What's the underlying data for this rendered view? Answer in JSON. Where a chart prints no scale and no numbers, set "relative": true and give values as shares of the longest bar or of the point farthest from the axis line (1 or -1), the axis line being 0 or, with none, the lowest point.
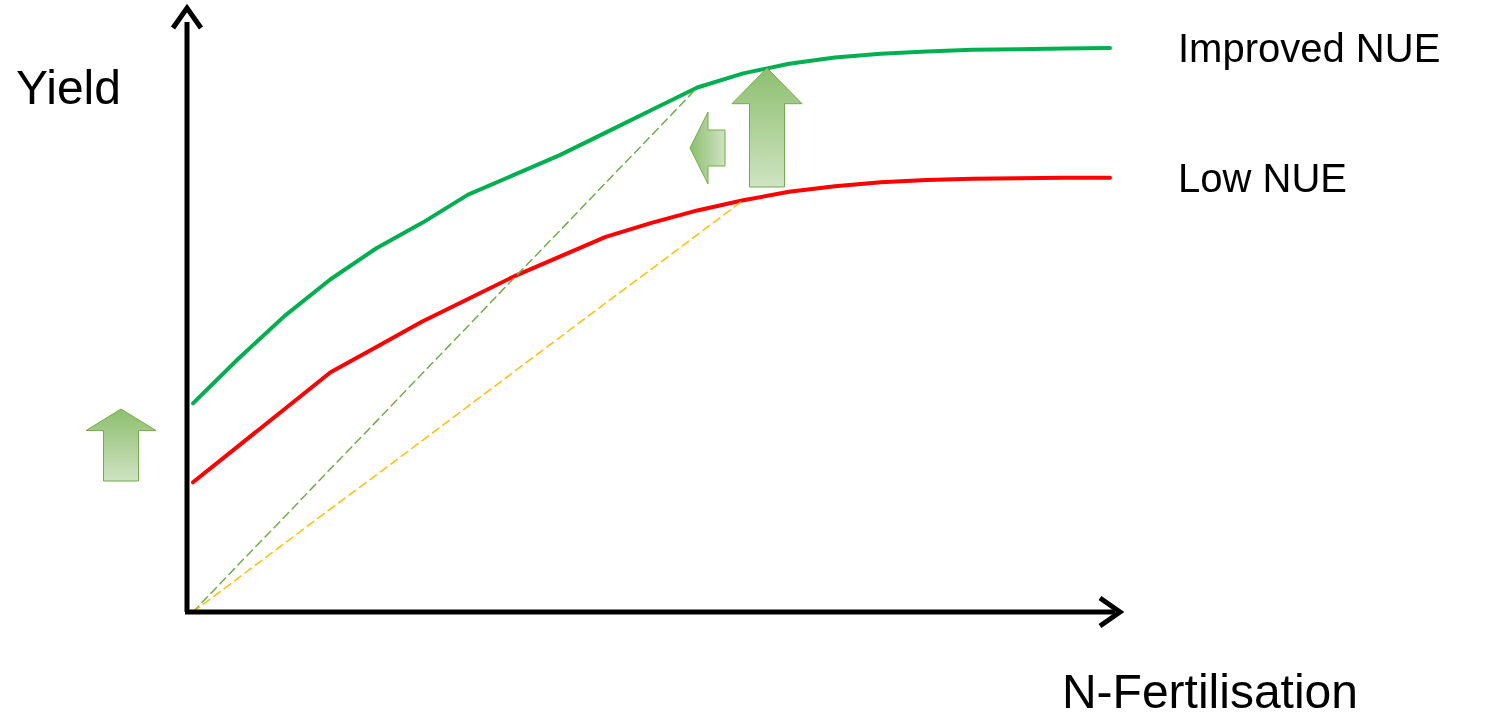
{
  "chart_data": {
    "type": "line",
    "relative": true,
    "xlabel": "N-Fertilisation",
    "ylabel": "Yield",
    "categories": [
      null,
      null,
      null,
      null,
      null,
      null,
      null,
      null,
      null,
      null,
      null,
      null,
      null,
      null,
      null,
      null,
      null,
      null,
      null,
      null,
      null
    ],
    "series": [
      {
        "name": "Improved NUE",
        "color": "#00b050",
        "values": [
          0.37,
          0.45,
          0.525,
          0.59,
          0.645,
          0.69,
          0.74,
          0.775,
          0.81,
          0.85,
          0.89,
          0.93,
          0.955,
          0.972,
          0.983,
          0.99,
          0.994,
          0.997,
          0.998,
          0.999,
          1.0
        ]
      },
      {
        "name": "Low NUE",
        "color": "#ff0000",
        "values": [
          0.23,
          0.295,
          0.36,
          0.425,
          0.47,
          0.515,
          0.555,
          0.595,
          0.63,
          0.665,
          0.69,
          0.712,
          0.73,
          0.745,
          0.755,
          0.762,
          0.766,
          0.768,
          0.769,
          0.77,
          0.77
        ]
      },
      {
        "color": "#70ad47",
        "line_style": "dashed",
        "values": [
          0,
          0.085,
          0.169,
          0.254,
          0.338,
          0.423,
          0.507,
          0.592,
          0.676,
          0.761,
          0.845,
          0.93,
          null,
          null,
          null,
          null,
          null,
          null,
          null,
          null,
          null
        ]
      },
      {
        "color": "#ffc000",
        "line_style": "dashed",
        "values": [
          0,
          0.061,
          0.122,
          0.183,
          0.243,
          0.304,
          0.365,
          0.426,
          0.487,
          0.548,
          0.608,
          0.669,
          0.73,
          null,
          null,
          null,
          null,
          null,
          null,
          null,
          null
        ]
      }
    ]
  }
}
